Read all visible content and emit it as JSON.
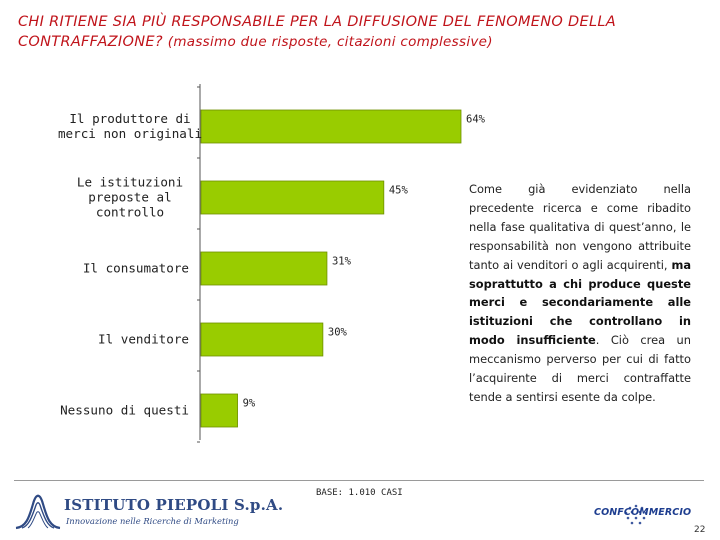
{
  "title": {
    "main": "CHI RITIENE SIA PIÙ RESPONSABILE PER LA DIFFUSIONE DEL FENOMENO DELLA CONTRAFFAZIONE?",
    "sub": "(massimo due risposte, citazioni complessive)"
  },
  "chart_data": {
    "type": "bar",
    "orientation": "horizontal",
    "categories": [
      [
        "Il produttore di",
        "merci non originali"
      ],
      [
        "Le istituzioni",
        "preposte al",
        "controllo"
      ],
      [
        "Il consumatore"
      ],
      [
        "Il venditore"
      ],
      [
        "Nessuno di questi"
      ]
    ],
    "values": [
      64,
      45,
      31,
      30,
      9
    ],
    "value_labels": [
      "64%",
      "45%",
      "31%",
      "30%",
      "9%"
    ],
    "unit": "%",
    "bar_color": "#99cc00",
    "xlim": [
      0,
      100
    ]
  },
  "note": {
    "part1": "Come già evidenziato nella precedente ricerca e come ribadito nella fase qualitativa di quest’anno, le responsabilità non vengono attribuite tanto ai venditori o agli acquirenti,",
    "bold": "ma soprattutto a chi produce queste merci e secondariamente alle istituzioni che controllano in modo insufficiente",
    "part2": ". Ciò crea un meccanismo perverso per cui di fatto l’acquirente di merci contraffatte tende a sentirsi esente da colpe."
  },
  "footer": {
    "base": "BASE: 1.010 CASI",
    "brand_name": "ISTITUTO PIEPOLI S.p.A.",
    "brand_tagline": "Innovazione nelle Ricerche di Marketing",
    "partner_logo": "CONFCOMMERCIO",
    "page": "22"
  },
  "colors": {
    "title": "#c0141b",
    "brand": "#2f4a84",
    "partner": "#1d3d8f"
  }
}
